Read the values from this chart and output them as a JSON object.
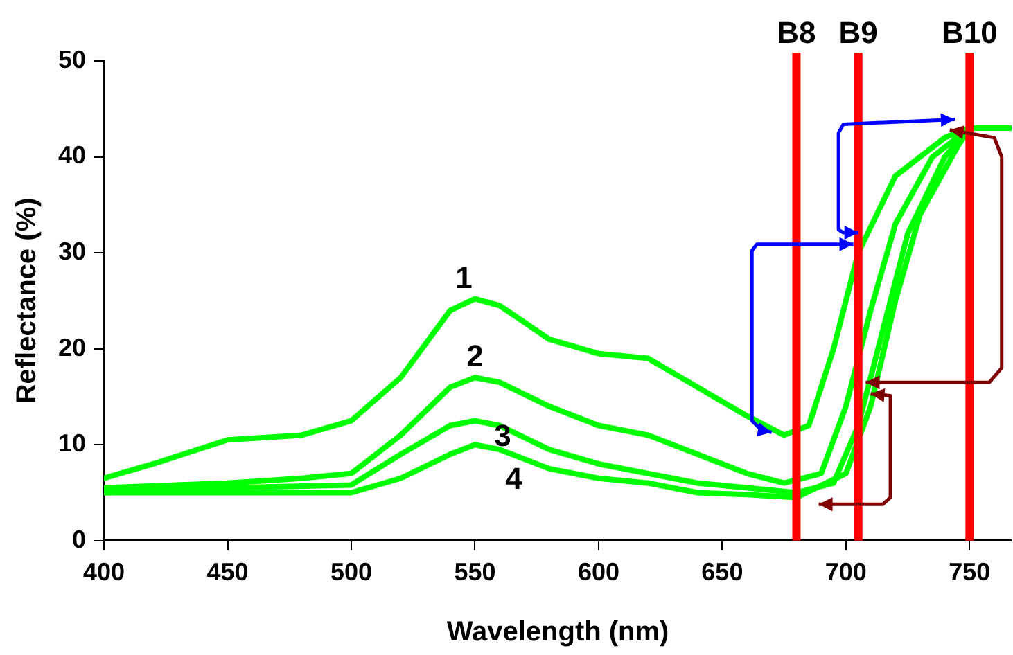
{
  "chart_data": {
    "type": "line",
    "xlabel": "Wavelength (nm)",
    "ylabel": "Reflectance (%)",
    "xlim": [
      400,
      767
    ],
    "xticks": [
      400,
      450,
      500,
      550,
      600,
      650,
      700,
      750
    ],
    "ylim": [
      0,
      50
    ],
    "yticks": [
      0,
      10,
      20,
      30,
      40,
      50
    ],
    "grid": false,
    "legend": false,
    "marker": "none",
    "line_style": "solid",
    "series": [
      {
        "name": "1",
        "color": "#00ff00",
        "x": [
          400,
          420,
          450,
          480,
          500,
          520,
          540,
          550,
          560,
          580,
          600,
          620,
          640,
          660,
          675,
          685,
          695,
          705,
          720,
          740,
          750,
          767
        ],
        "values": [
          6.5,
          8,
          10.5,
          11,
          12.5,
          17,
          24,
          25.2,
          24.5,
          21,
          19.5,
          19,
          16,
          13,
          11,
          12,
          20,
          30,
          38,
          42,
          43,
          43
        ]
      },
      {
        "name": "2",
        "color": "#00ff00",
        "x": [
          400,
          450,
          480,
          500,
          520,
          540,
          550,
          560,
          580,
          600,
          620,
          640,
          660,
          675,
          690,
          700,
          710,
          720,
          735,
          750
        ],
        "values": [
          5.5,
          6,
          6.5,
          7,
          11,
          16,
          17,
          16.5,
          14,
          12,
          11,
          9,
          7,
          6,
          7,
          14,
          24,
          33,
          40,
          43
        ]
      },
      {
        "name": "3",
        "color": "#00ff00",
        "x": [
          400,
          450,
          500,
          520,
          540,
          550,
          560,
          580,
          600,
          620,
          640,
          660,
          680,
          695,
          705,
          715,
          725,
          740,
          750
        ],
        "values": [
          5,
          5.5,
          5.8,
          9,
          12,
          12.5,
          12,
          9.5,
          8,
          7,
          6,
          5.5,
          5,
          6,
          12,
          22,
          32,
          40,
          43
        ]
      },
      {
        "name": "4",
        "color": "#00ff00",
        "x": [
          400,
          450,
          500,
          520,
          540,
          550,
          560,
          580,
          600,
          620,
          640,
          660,
          680,
          700,
          710,
          720,
          730,
          745,
          750
        ],
        "values": [
          5,
          5,
          5,
          6.5,
          9,
          10,
          9.5,
          7.5,
          6.5,
          6,
          5,
          4.8,
          4.5,
          7,
          14,
          25,
          34,
          41,
          43
        ]
      }
    ],
    "ref_lines": [
      {
        "axis": "x",
        "value": 680,
        "label": "B8",
        "color": "#ff0000"
      },
      {
        "axis": "x",
        "value": 705,
        "label": "B9",
        "color": "#ff0000"
      },
      {
        "axis": "x",
        "value": 750,
        "label": "B10",
        "color": "#ff0000"
      }
    ]
  }
}
